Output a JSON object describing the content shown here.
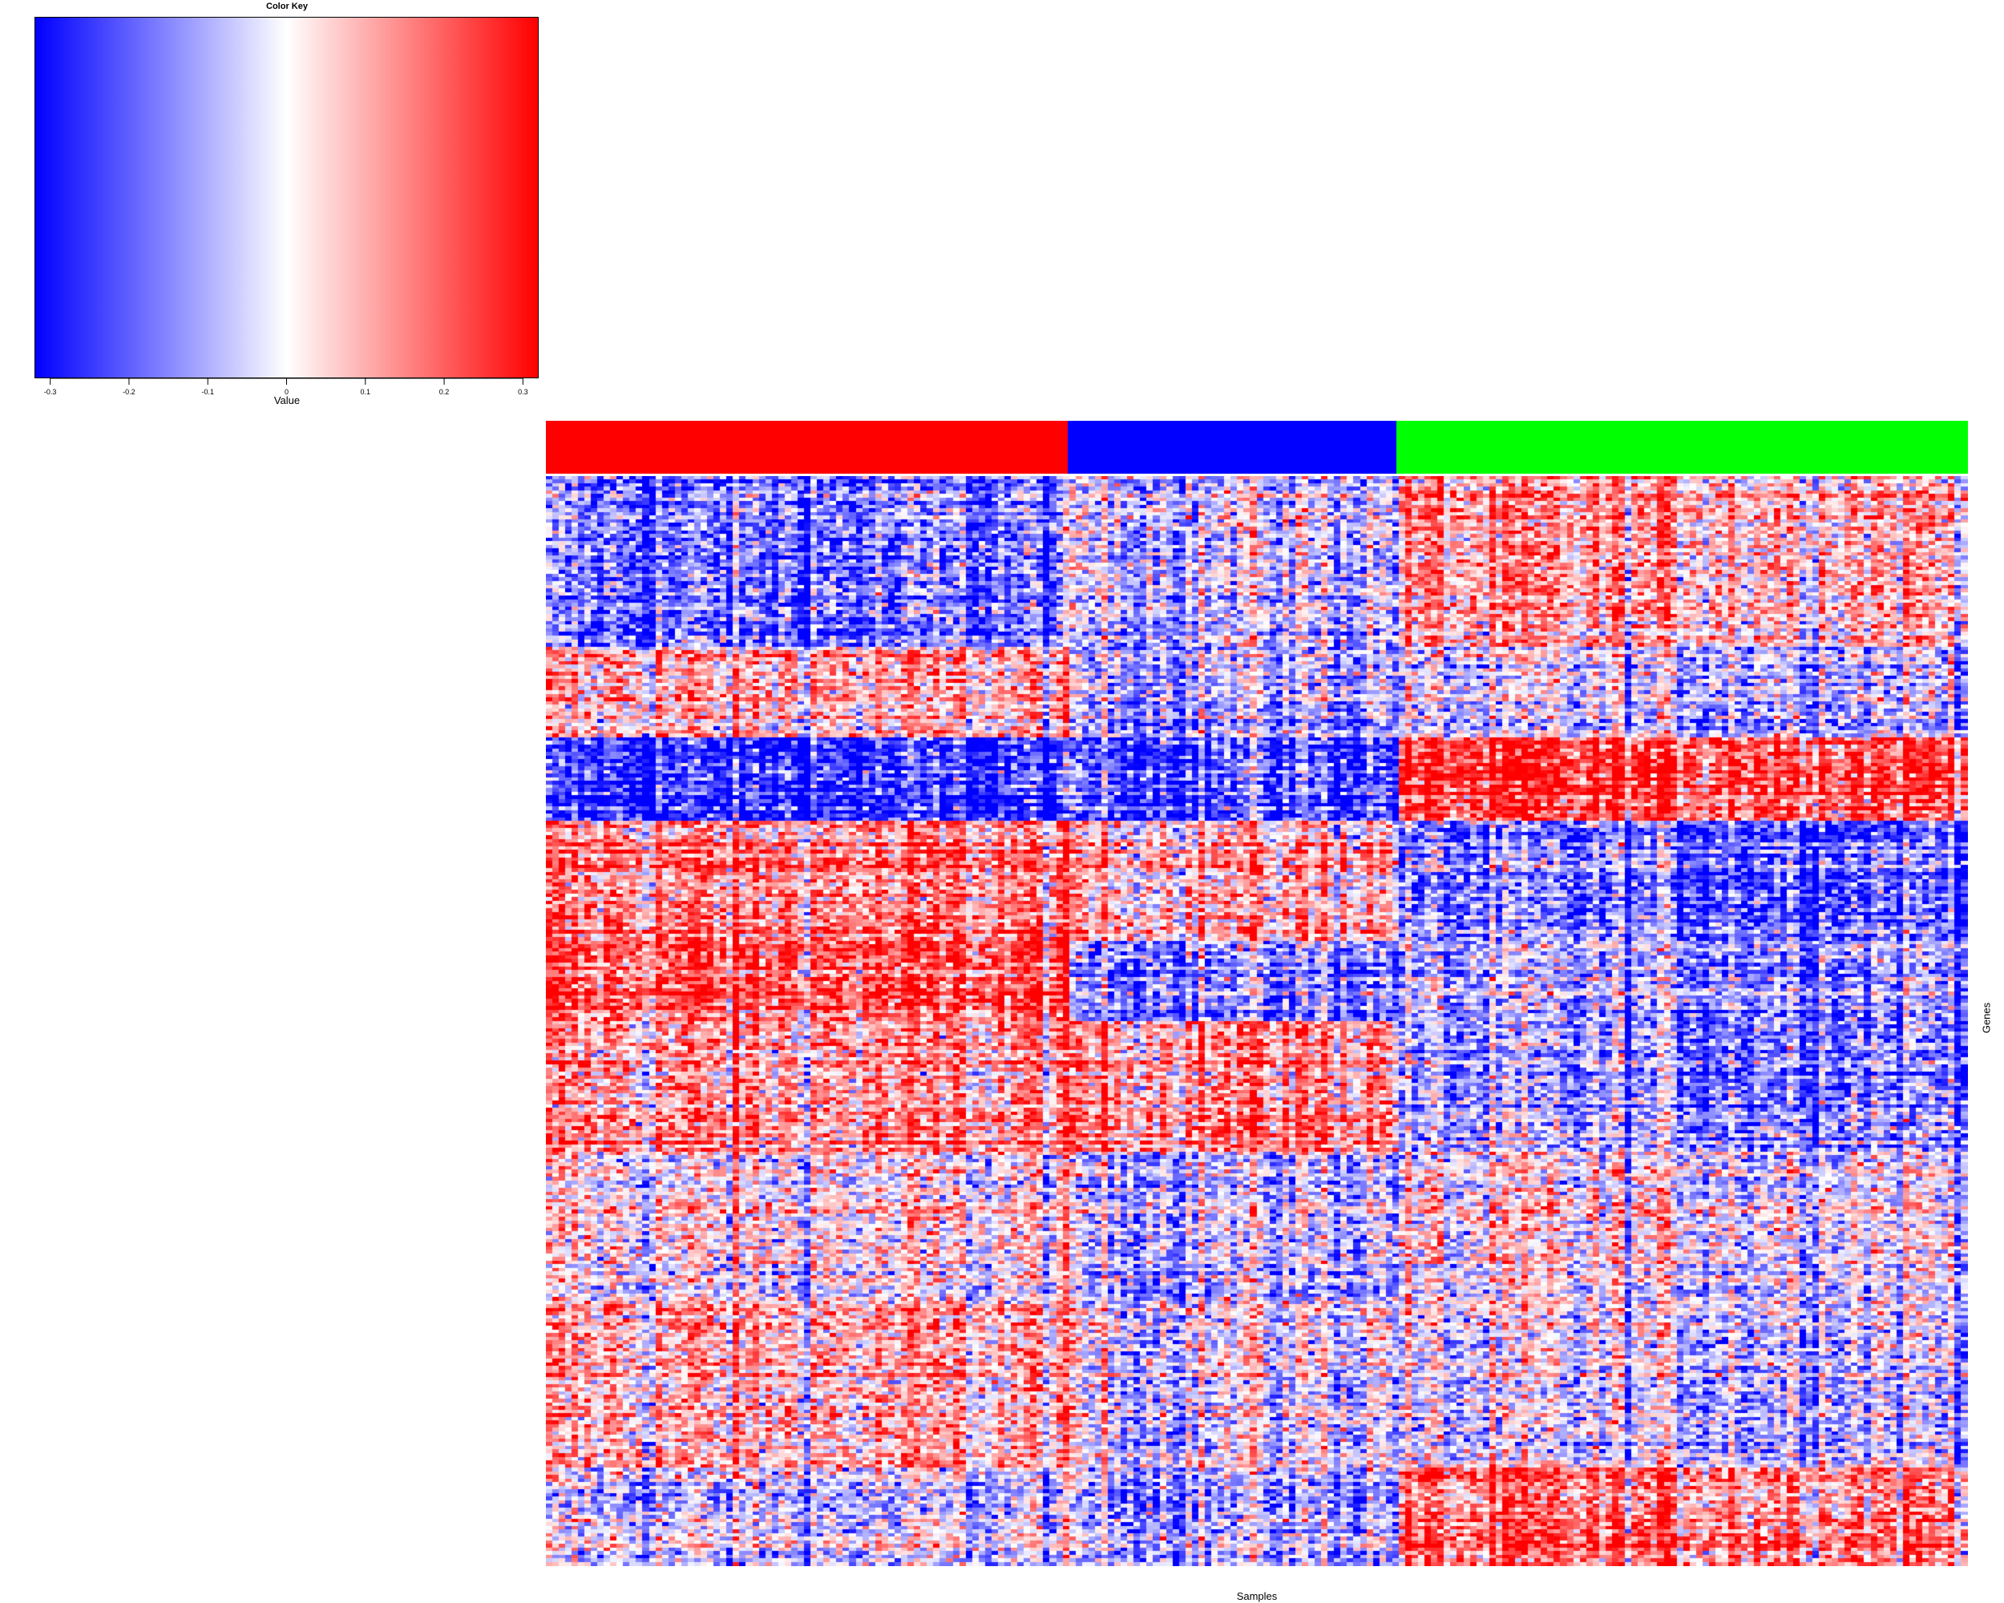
{
  "chart_data": {
    "type": "heatmap",
    "color_key": {
      "title": "Color Key",
      "xlabel": "Value",
      "range": [
        -0.32,
        0.32
      ],
      "ticks": [
        -0.3,
        -0.2,
        -0.1,
        0,
        0.1,
        0.2,
        0.3
      ],
      "tick_labels": [
        "-0.3",
        "-0.2",
        "-0.1",
        "0",
        "0.1",
        "0.2",
        "0.3"
      ],
      "low_color": "#0000ff",
      "mid_color": "#ffffff",
      "high_color": "#ff0000"
    },
    "xlabel": "Samples",
    "ylabel": "Genes",
    "sample_groups": [
      {
        "color": "#ff0000",
        "fraction": 0.367
      },
      {
        "color": "#0000ff",
        "fraction": 0.231
      },
      {
        "color": "#00ff00",
        "fraction": 0.402
      }
    ],
    "n_samples": 220,
    "n_genes": 300,
    "gene_blocks": [
      {
        "fraction": 0.155,
        "group_values": [
          -0.18,
          -0.05,
          0.1
        ]
      },
      {
        "fraction": 0.085,
        "group_values": [
          0.08,
          -0.08,
          -0.06
        ]
      },
      {
        "fraction": 0.075,
        "group_values": [
          -0.26,
          -0.2,
          0.26
        ]
      },
      {
        "fraction": 0.11,
        "group_values": [
          0.15,
          0.1,
          -0.18
        ]
      },
      {
        "fraction": 0.075,
        "group_values": [
          0.2,
          -0.15,
          -0.12
        ]
      },
      {
        "fraction": 0.12,
        "group_values": [
          0.12,
          0.16,
          -0.12
        ]
      },
      {
        "fraction": 0.14,
        "group_values": [
          0.02,
          -0.05,
          0.01
        ]
      },
      {
        "fraction": 0.15,
        "group_values": [
          0.08,
          -0.02,
          -0.05
        ]
      },
      {
        "fraction": 0.09,
        "group_values": [
          -0.05,
          -0.08,
          0.18
        ]
      }
    ]
  }
}
